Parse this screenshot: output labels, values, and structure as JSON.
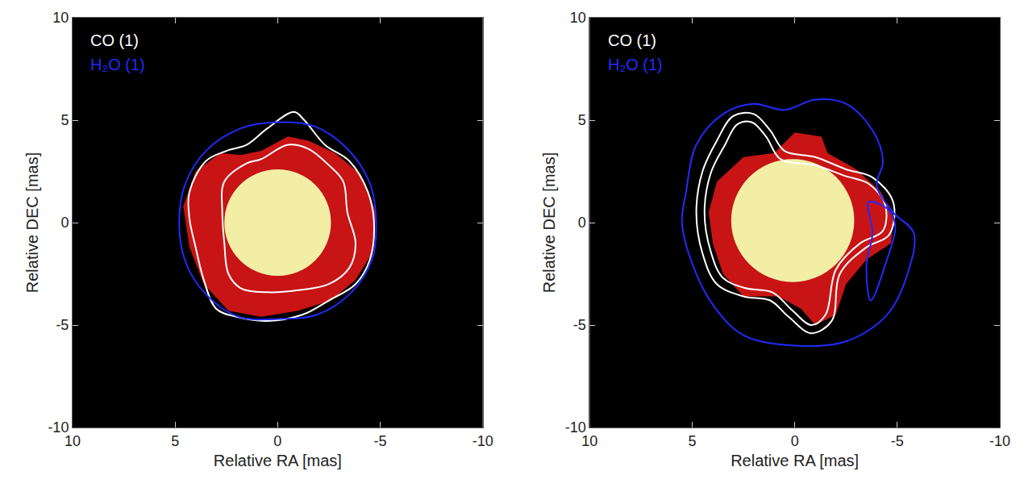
{
  "chart_data": [
    {
      "type": "image",
      "x_label": "Relative RA [mas]",
      "y_label": "Relative DEC [mas]",
      "xlim": [
        10,
        -10
      ],
      "ylim": [
        -10,
        10
      ],
      "xticks": [
        10,
        5,
        0,
        -5,
        -10
      ],
      "yticks": [
        -10,
        -5,
        0,
        5,
        10
      ],
      "grid": false,
      "legend": "upper left",
      "emission": {
        "color": "#c81414",
        "x": [
          4.6,
          4.0,
          2.8,
          1.8,
          0.8,
          -0.5,
          -1.5,
          -2.8,
          -4.0,
          -4.8,
          -4.6,
          -3.8,
          -2.6,
          -1.0,
          0.8,
          2.4,
          3.6,
          4.3,
          4.6
        ],
        "y": [
          0.8,
          2.5,
          3.4,
          3.3,
          3.5,
          4.2,
          4.0,
          3.4,
          2.4,
          0.5,
          -1.5,
          -2.8,
          -3.8,
          -4.3,
          -4.6,
          -4.3,
          -3.0,
          -1.2,
          0.8
        ]
      },
      "star": {
        "color": "#f2eea6",
        "center": [
          0,
          0
        ],
        "radius": 2.6
      },
      "series": [
        {
          "name": "CO (1)",
          "color": "#ffffff",
          "contours": [
            {
              "x": [
                4.3,
                3.5,
                2.5,
                1.5,
                0.5,
                -0.8,
                -1.3,
                -2.3,
                -3.5,
                -4.4,
                -4.7,
                -4.5,
                -3.8,
                -2.5,
                -1.2,
                0.5,
                2.0,
                3.0,
                3.6,
                4.0,
                4.3,
                4.3
              ],
              "y": [
                1.5,
                3.0,
                3.5,
                3.8,
                4.6,
                5.4,
                5.0,
                3.8,
                3.0,
                1.5,
                0.0,
                -1.8,
                -3.0,
                -3.8,
                -4.5,
                -4.8,
                -4.6,
                -4.2,
                -2.8,
                -1.2,
                0.2,
                1.5
              ]
            },
            {
              "x": [
                2.6,
                1.5,
                0.8,
                -0.5,
                -1.5,
                -2.5,
                -3.2,
                -3.4,
                -3.8,
                -3.5,
                -2.5,
                -1.0,
                0.5,
                1.8,
                2.4,
                2.6,
                2.7,
                2.6
              ],
              "y": [
                2.0,
                2.9,
                3.1,
                3.8,
                3.6,
                2.8,
                2.0,
                0.5,
                -1.0,
                -2.2,
                -3.0,
                -3.3,
                -3.4,
                -3.2,
                -2.5,
                -1.0,
                0.5,
                2.0
              ]
            }
          ]
        },
        {
          "name": "H₂O (1)",
          "color": "#1f2bff",
          "contours": [
            {
              "x": [
                4.8,
                4.5,
                3.5,
                1.8,
                0.0,
                -1.8,
                -3.4,
                -4.5,
                -4.8,
                -4.6,
                -3.6,
                -1.9,
                0.0,
                1.9,
                3.5,
                4.5,
                4.8
              ],
              "y": [
                0.0,
                1.9,
                3.5,
                4.6,
                4.9,
                4.7,
                3.6,
                1.9,
                0.0,
                -1.8,
                -3.4,
                -4.5,
                -4.7,
                -4.6,
                -3.5,
                -1.9,
                0.0
              ]
            }
          ]
        }
      ]
    },
    {
      "type": "image",
      "x_label": "Relative RA [mas]",
      "y_label": "Relative DEC [mas]",
      "xlim": [
        10,
        -10
      ],
      "ylim": [
        -10,
        10
      ],
      "xticks": [
        10,
        5,
        0,
        -5,
        -10
      ],
      "yticks": [
        -10,
        -5,
        0,
        5,
        10
      ],
      "grid": false,
      "legend": "upper left",
      "emission": {
        "color": "#c81414",
        "x": [
          3.8,
          2.5,
          1.0,
          0.0,
          -1.3,
          -1.6,
          -3.0,
          -4.2,
          -4.8,
          -4.7,
          -3.5,
          -2.5,
          -2.0,
          -1.0,
          -0.3,
          0.8,
          2.5,
          3.5,
          4.0,
          4.2,
          3.8
        ],
        "y": [
          2.0,
          3.2,
          3.4,
          4.4,
          4.2,
          3.4,
          2.6,
          1.5,
          0.2,
          -1.0,
          -1.8,
          -3.0,
          -4.5,
          -5.0,
          -4.2,
          -3.6,
          -3.6,
          -2.5,
          -1.0,
          0.5,
          2.0
        ]
      },
      "star": {
        "color": "#f2eea6",
        "center": [
          0.1,
          0.1
        ],
        "radius": 3.0
      },
      "series": [
        {
          "name": "CO (1)",
          "color": "#ffffff",
          "contours": [
            {
              "x": [
                4.5,
                3.8,
                3.0,
                2.0,
                1.2,
                0.5,
                -1.0,
                -2.5,
                -3.8,
                -4.8,
                -4.6,
                -3.5,
                -2.2,
                -1.8,
                -0.8,
                0.3,
                1.2,
                2.5,
                3.8,
                4.5,
                4.8,
                4.5
              ],
              "y": [
                2.5,
                4.0,
                5.2,
                5.3,
                4.5,
                3.5,
                3.2,
                2.6,
                2.2,
                1.0,
                -0.6,
                -1.2,
                -2.5,
                -4.8,
                -5.4,
                -4.6,
                -3.8,
                -3.6,
                -3.0,
                -1.5,
                0.5,
                2.5
              ]
            },
            {
              "x": [
                4.1,
                3.4,
                2.8,
                2.1,
                1.4,
                0.7,
                -1.0,
                -2.4,
                -3.6,
                -4.4,
                -4.3,
                -3.2,
                -2.0,
                -1.5,
                -0.8,
                0.1,
                1.1,
                2.4,
                3.5,
                4.1,
                4.4,
                4.1
              ],
              "y": [
                2.4,
                3.8,
                4.8,
                4.9,
                4.2,
                3.1,
                2.8,
                2.3,
                1.9,
                0.9,
                -0.4,
                -1.0,
                -2.3,
                -4.5,
                -5.0,
                -4.3,
                -3.4,
                -3.2,
                -2.7,
                -1.4,
                0.5,
                2.4
              ]
            }
          ]
        },
        {
          "name": "H₂O (1)",
          "color": "#1f2bff",
          "contours": [
            {
              "x": [
                5.3,
                4.8,
                3.5,
                2.0,
                0.5,
                -1.0,
                -2.5,
                -3.8,
                -4.3,
                -4.0,
                -4.8,
                -5.8,
                -5.5,
                -4.5,
                -2.5,
                0.0,
                2.5,
                4.0,
                5.0,
                5.5,
                5.3
              ],
              "y": [
                1.5,
                3.8,
                5.3,
                5.8,
                5.5,
                6.0,
                5.8,
                4.5,
                3.0,
                1.8,
                0.5,
                -0.5,
                -2.5,
                -4.5,
                -5.8,
                -6.0,
                -5.5,
                -4.0,
                -2.0,
                0.0,
                1.5
              ]
            },
            {
              "x": [
                -3.6,
                -4.6,
                -4.9,
                -4.5,
                -3.7,
                -3.5,
                -3.8,
                -3.6
              ],
              "y": [
                1.0,
                0.6,
                -0.2,
                -1.8,
                -3.8,
                -2.0,
                -0.5,
                1.0
              ]
            }
          ]
        }
      ]
    }
  ]
}
